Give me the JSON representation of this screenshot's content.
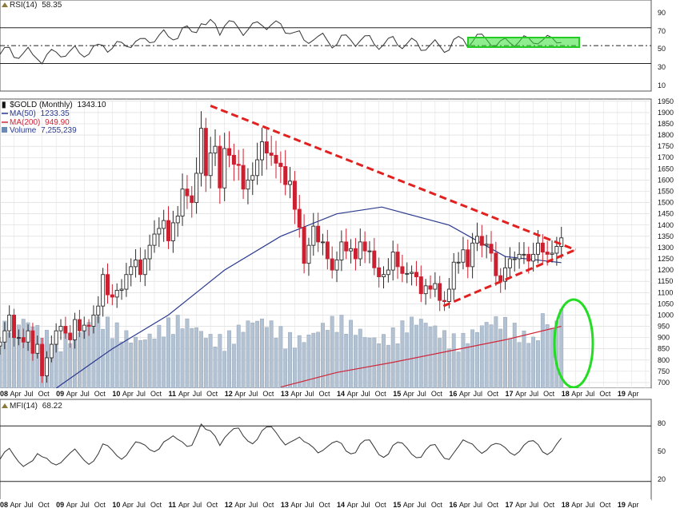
{
  "rsi_panel": {
    "label": "RSI(14)",
    "value": "58.35",
    "levels": [
      "90",
      "70",
      "50",
      "30",
      "10"
    ]
  },
  "price_panel": {
    "symbol": "$GOLD (Monthly)",
    "last": "1343.10",
    "ma50_label": "MA(50)",
    "ma50_value": "1233.35",
    "ma200_label": "MA(200)",
    "ma200_value": "949.90",
    "volume_label": "Volume",
    "volume_value": "7,255,239",
    "price_ticks": [
      "1950",
      "1900",
      "1850",
      "1800",
      "1750",
      "1700",
      "1650",
      "1600",
      "1550",
      "1500",
      "1450",
      "1400",
      "1350",
      "1300",
      "1250",
      "1200",
      "1150",
      "1100",
      "1050",
      "1000",
      "950",
      "900",
      "850",
      "800",
      "750",
      "700"
    ]
  },
  "mfi_panel": {
    "label": "MFI(14)",
    "value": "68.22",
    "levels": [
      "80",
      "50",
      "20"
    ]
  },
  "x_axis_labels": [
    "08",
    "Apr",
    "Jul",
    "Oct",
    "09",
    "Apr",
    "Jul",
    "Oct",
    "10",
    "Apr",
    "Jul",
    "Oct",
    "11",
    "Apr",
    "Jul",
    "Oct",
    "12",
    "Apr",
    "Jul",
    "Oct",
    "13",
    "Apr",
    "Jul",
    "Oct",
    "14",
    "Apr",
    "Jul",
    "Oct",
    "15",
    "Apr",
    "Jul",
    "Oct",
    "16",
    "Apr",
    "Jul",
    "Oct",
    "17",
    "Apr",
    "Jul",
    "Oct",
    "18",
    "Apr",
    "Jul",
    "Oct",
    "19",
    "Apr"
  ],
  "colors": {
    "up": "#2a2a2a",
    "down": "#cc2030",
    "ma50": "#2b3a8f",
    "ma200": "#d0263a",
    "volume": "#b3c2d3",
    "trend": "#e32020",
    "highlight": "#22dd22",
    "rsi_line": "#333333",
    "fill_over": "#8a7a3a",
    "fill_under": "#9b4a60"
  },
  "chart_data": {
    "type": "candlestick",
    "title": "$GOLD (Monthly)",
    "price_range": [
      675,
      1960
    ],
    "series_summary": {
      "2008": [
        880,
        930,
        1000,
        900,
        900,
        880,
        930,
        830,
        870,
        730,
        810,
        870
      ],
      "2009": [
        930,
        950,
        920,
        890,
        980,
        930,
        955,
        950,
        1000,
        1040,
        1180,
        1090
      ],
      "2010": [
        1080,
        1110,
        1115,
        1180,
        1215,
        1245,
        1180,
        1250,
        1310,
        1360,
        1385,
        1420
      ],
      "2011": [
        1330,
        1410,
        1440,
        1560,
        1530,
        1500,
        1630,
        1830,
        1620,
        1720,
        1750,
        1565
      ],
      "2012": [
        1740,
        1710,
        1670,
        1665,
        1560,
        1600,
        1620,
        1690,
        1770,
        1720,
        1710,
        1675
      ],
      "2013": [
        1660,
        1580,
        1595,
        1470,
        1390,
        1230,
        1310,
        1395,
        1325,
        1325,
        1250,
        1200
      ],
      "2014": [
        1245,
        1325,
        1285,
        1295,
        1250,
        1325,
        1285,
        1285,
        1210,
        1170,
        1180,
        1200
      ],
      "2015": [
        1280,
        1215,
        1185,
        1185,
        1190,
        1170,
        1095,
        1130,
        1115,
        1140,
        1065,
        1060
      ],
      "2016": [
        1115,
        1235,
        1235,
        1290,
        1215,
        1320,
        1350,
        1310,
        1315,
        1275,
        1175,
        1150
      ],
      "2017": [
        1210,
        1250,
        1250,
        1270,
        1270,
        1240,
        1270,
        1320,
        1280,
        1270,
        1275,
        1305
      ],
      "2018": [
        1343
      ]
    },
    "ma50": [
      [
        2009.0,
        675
      ],
      [
        2010.0,
        850
      ],
      [
        2011.0,
        1000
      ],
      [
        2012.0,
        1200
      ],
      [
        2013.0,
        1350
      ],
      [
        2014.0,
        1450
      ],
      [
        2014.8,
        1480
      ],
      [
        2016.0,
        1400
      ],
      [
        2017.0,
        1260
      ],
      [
        2018.0,
        1233
      ]
    ],
    "ma200": [
      [
        2013.0,
        680
      ],
      [
        2014.0,
        745
      ],
      [
        2015.0,
        790
      ],
      [
        2016.0,
        840
      ],
      [
        2017.0,
        890
      ],
      [
        2018.0,
        950
      ]
    ],
    "volume_panel_overlay": true,
    "trendlines": [
      {
        "from": [
          2011.75,
          1930
        ],
        "to": [
          2018.25,
          1290
        ],
        "style": "dashed"
      },
      {
        "from": [
          2015.9,
          1040
        ],
        "to": [
          2018.25,
          1290
        ],
        "style": "dashed"
      }
    ],
    "rsi": {
      "range": [
        0,
        100
      ],
      "ticks": [
        90,
        70,
        50,
        30,
        10
      ],
      "last": 58.35
    },
    "mfi": {
      "range": [
        0,
        100
      ],
      "ticks": [
        80,
        50,
        20
      ],
      "last": 68.22
    }
  }
}
